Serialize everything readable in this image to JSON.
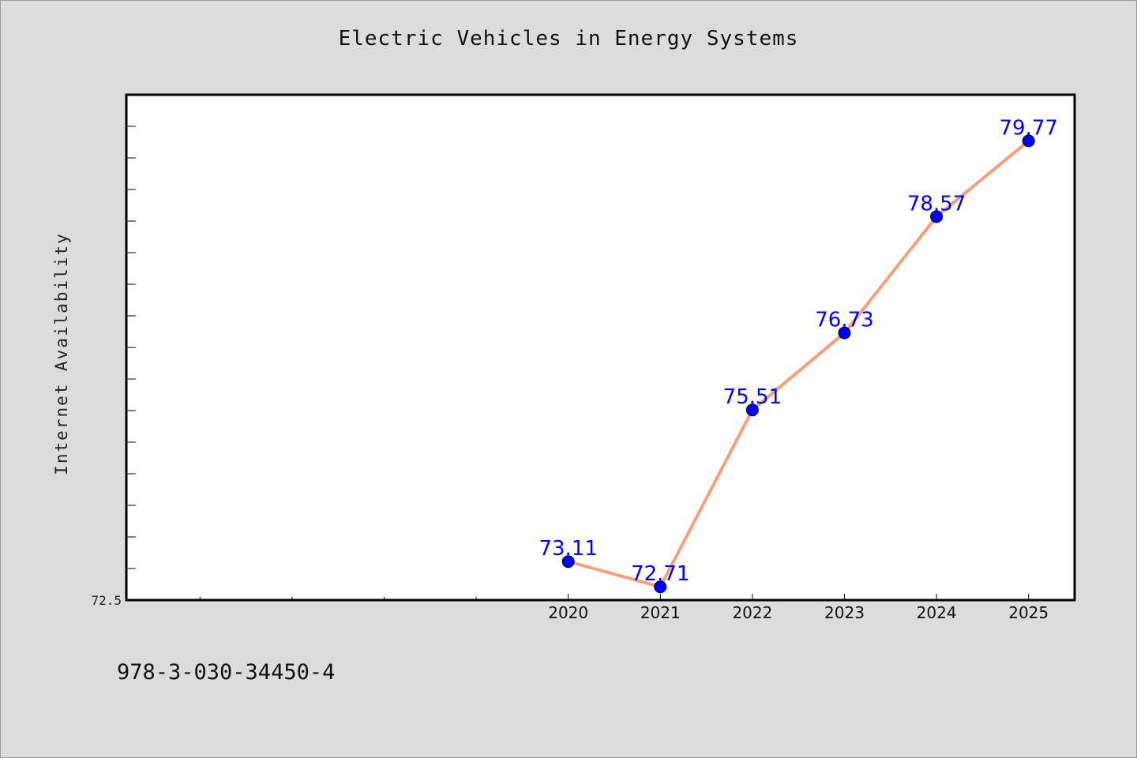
{
  "page": {
    "title": "Electric Vehicles in Energy Systems",
    "isbn": "978-3-030-34450-4"
  },
  "chart_data": {
    "type": "line",
    "title": "Electric Vehicles in Energy Systems",
    "xlabel": "",
    "ylabel": "Internet Availability",
    "x": [
      2020,
      2021,
      2022,
      2023,
      2024,
      2025
    ],
    "x_tick_labels": [
      "2020",
      "2021",
      "2022",
      "2023",
      "2024",
      "2025"
    ],
    "xlim": [
      2015.2,
      2025.5
    ],
    "ylim": [
      72.5,
      80.5
    ],
    "y_tick_labels": [
      "72.5"
    ],
    "series": [
      {
        "values": [
          73.11,
          72.71,
          75.51,
          76.73,
          78.57,
          79.77
        ],
        "data_labels": [
          "73.11",
          "72.71",
          "75.51",
          "76.73",
          "78.57",
          "79.77"
        ],
        "line_color": "#f4a07c",
        "marker_color": "#0000ff"
      }
    ],
    "grid": false,
    "legend": "none"
  }
}
